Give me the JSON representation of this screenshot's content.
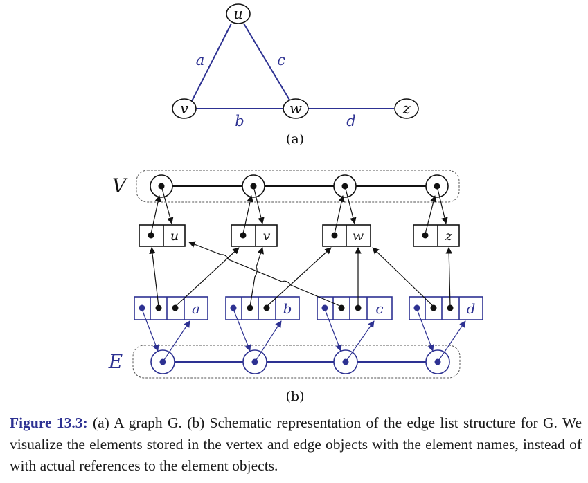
{
  "colors": {
    "blue": "#2d3192",
    "black": "#111111",
    "dashed": "#555555"
  },
  "part_a": {
    "label": "(a)",
    "vertices": [
      "u",
      "v",
      "w",
      "z"
    ],
    "edges": [
      {
        "name": "a",
        "from": "v",
        "to": "u"
      },
      {
        "name": "c",
        "from": "u",
        "to": "w"
      },
      {
        "name": "b",
        "from": "v",
        "to": "w"
      },
      {
        "name": "d",
        "from": "w",
        "to": "z"
      }
    ]
  },
  "part_b": {
    "label": "(b)",
    "vertex_sequence_label": "V",
    "edge_sequence_label": "E",
    "vertex_objects": [
      "u",
      "v",
      "w",
      "z"
    ],
    "edge_objects": [
      "a",
      "b",
      "c",
      "d"
    ]
  },
  "caption": {
    "figure_label": "Figure 13.3:",
    "text": "(a) A graph G. (b) Schematic representation of the edge list structure for G. We visualize the elements stored in the vertex and edge objects with the element names, instead of with actual references to the element objects."
  }
}
